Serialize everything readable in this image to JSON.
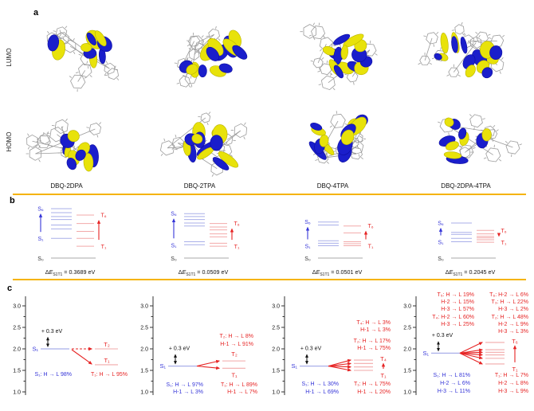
{
  "colors": {
    "separator": "#f5b301",
    "singlet": "#3535d8",
    "singlet_line": "#a9afe9",
    "triplet": "#e62424",
    "triplet_line": "#f2a9a9",
    "axis": "#333333",
    "ground_line": "#a8a8a8",
    "ground_text": "#333333",
    "text": "#111111",
    "orbital_positive": "#e8e20a",
    "orbital_negative": "#1a1ecb",
    "skeleton": "#9b9b9b"
  },
  "panel_a": {
    "label": "a",
    "row_labels": [
      "LUMO",
      "HOMO"
    ],
    "compounds": [
      "DBQ-2DPA",
      "DBQ-2TPA",
      "DBQ-4TPA",
      "DBQ-2DPA-4TPA"
    ]
  },
  "panel_b": {
    "label": "b",
    "columns": [
      {
        "compound": "DBQ-2DPA",
        "labels": {
          "s_top": "S₆",
          "s_bottom": "S₁",
          "t_top": "T₆",
          "t_bottom": "T₁",
          "ground": "S₀"
        },
        "s_levels": [
          0.4,
          0.59,
          0.67,
          0.78,
          0.84,
          0.92,
          1.0
        ],
        "t_levels": [
          0.24,
          0.4,
          0.54,
          0.7,
          0.87
        ],
        "delta_e": {
          "d": "Δ",
          "e": "E",
          "sub": "S1T1",
          "rest": " = 0.3689 eV"
        }
      },
      {
        "compound": "DBQ-2TPA",
        "labels": {
          "s_top": "S₆",
          "s_bottom": "S₁",
          "t_top": "T₆",
          "t_bottom": "T₁",
          "ground": "S₀"
        },
        "s_levels": [
          0.27,
          0.33,
          0.65,
          0.71,
          0.78,
          0.84,
          0.9
        ],
        "t_levels": [
          0.24,
          0.3,
          0.43,
          0.49,
          0.57,
          0.63,
          0.7
        ],
        "delta_e": {
          "d": "Δ",
          "e": "E",
          "sub": "S1T1",
          "rest": " = 0.0509 eV"
        }
      },
      {
        "compound": "DBQ-4TPA",
        "labels": {
          "s_top": "S₆",
          "s_bottom": "S₁",
          "t_top": "T₆",
          "t_bottom": "T₁",
          "ground": "S₀"
        },
        "s_levels": [
          0.25,
          0.3,
          0.35,
          0.67,
          0.73
        ],
        "t_levels": [
          0.25,
          0.29,
          0.33,
          0.51,
          0.65
        ],
        "delta_e": {
          "d": "Δ",
          "e": "E",
          "sub": "S1T1",
          "rest": " = 0.0501 eV"
        }
      },
      {
        "compound": "DBQ-2DPA-4TPA",
        "labels": {
          "s_top": "S₆",
          "s_bottom": "S₁",
          "t_top": "T₆",
          "t_bottom": "T₁",
          "ground": "S₀"
        },
        "s_levels": [
          0.33,
          0.4,
          0.48,
          0.52,
          0.71
        ],
        "t_levels": [
          0.32,
          0.37,
          0.41,
          0.44,
          0.49,
          0.56
        ],
        "delta_e": {
          "d": "Δ",
          "e": "E",
          "sub": "S1T1",
          "rest": " = 0.2045 eV"
        }
      }
    ]
  },
  "panel_c": {
    "label": "c"
  },
  "chart_data": [
    {
      "type": "line",
      "title": "DBQ-2DPA",
      "ylim": [
        1.0,
        3.0
      ],
      "yticks": [
        1.0,
        1.5,
        2.0,
        2.5,
        3.0
      ],
      "grid": false,
      "offset_label": "+ 0.3 eV",
      "offset_value": 0.3,
      "s1": {
        "label": "S₁",
        "energy": 2.0
      },
      "t_states": [
        {
          "label": "T₂",
          "energy": 2.0,
          "arrow": "dashed"
        },
        {
          "label": "T₁",
          "energy": 1.63,
          "arrow": "solid"
        }
      ],
      "s_annotation": [
        "S₁: H → L 98%"
      ],
      "t_annotation": [
        "T₁: H → L 95%"
      ]
    },
    {
      "type": "line",
      "title": "DBQ-2TPA",
      "ylim": [
        1.0,
        3.0
      ],
      "yticks": [
        1.0,
        1.5,
        2.0,
        2.5,
        3.0
      ],
      "grid": false,
      "offset_label": "+ 0.3 eV",
      "offset_value": 0.3,
      "s1": {
        "label": "S₁",
        "energy": 1.6
      },
      "t_states": [
        {
          "label": "T₂",
          "energy": 1.72,
          "arrow": "solid"
        },
        {
          "label": "T₁",
          "energy": 1.55,
          "arrow": "solid"
        }
      ],
      "top_right_annotation": [
        "T₂: H → L 8%",
        "H-1 → L 91%"
      ],
      "s_annotation": [
        "S₁: H → L 97%",
        "H-1 → L 3%"
      ],
      "t_annotation": [
        "T₁: H → L 89%",
        "H-1 → L 7%"
      ]
    },
    {
      "type": "line",
      "title": "DBQ-4TPA",
      "ylim": [
        1.0,
        3.0
      ],
      "yticks": [
        1.0,
        1.5,
        2.0,
        2.5,
        3.0
      ],
      "grid": false,
      "offset_label": "+ 0.3 eV",
      "offset_value": 0.3,
      "s1": {
        "label": "S₁",
        "energy": 1.6
      },
      "t_states": [
        {
          "label": "T₁",
          "energy": 1.5,
          "arrow": "solid"
        },
        {
          "label": "T₂",
          "energy": 1.58,
          "arrow": "solid"
        },
        {
          "label": "T₃",
          "energy": 1.66,
          "arrow": "solid"
        },
        {
          "label": "T₄",
          "energy": 1.74,
          "arrow": "solid"
        }
      ],
      "range_arrow": {
        "top_label": "T₄",
        "bottom_label": "T₁"
      },
      "top_right_annotation": [
        "T₄: H → L 3%",
        "H-1 → L 3%",
        "T₂: H → L 17%",
        "H-1 → L 75%"
      ],
      "s_annotation": [
        "S₁: H → L 30%",
        "H-1 → L 69%"
      ],
      "t_annotation": [
        "T₁: H → L 75%",
        "H-1 → L 20%"
      ]
    },
    {
      "type": "line",
      "title": "DBQ-2DPA-4TPA",
      "ylim": [
        1.0,
        3.0
      ],
      "yticks": [
        1.0,
        1.5,
        2.0,
        2.5,
        3.0
      ],
      "grid": false,
      "offset_label": "+ 0.3 eV",
      "offset_value": 0.3,
      "s1": {
        "label": "S₁",
        "energy": 1.9
      },
      "t_states": [
        {
          "label": "T₁",
          "energy": 1.65,
          "arrow": "solid"
        },
        {
          "label": "T₂",
          "energy": 1.78,
          "arrow": "solid"
        },
        {
          "label": "T₃",
          "energy": 1.86,
          "arrow": "solid"
        },
        {
          "label": "T₄",
          "energy": 1.92,
          "arrow": "solid"
        },
        {
          "label": "T₅",
          "energy": 1.98,
          "arrow": "solid"
        },
        {
          "label": "T₆",
          "energy": 2.15,
          "arrow": "solid"
        }
      ],
      "range_arrow": {
        "top_label": "T₆",
        "bottom_label": "T₁"
      },
      "top_left_annotation": [
        "T₅: H → L 19%",
        "H-2 → L 15%",
        "H-3 → L 57%",
        "T₄: H-2 → L 60%",
        "H-3 → L 25%"
      ],
      "top_right_annotation": [
        "T₆: H-2 → L 6%",
        "T₃: H → L 22%",
        "H-3 → L 2%",
        "T₂: H → L 48%",
        "H-2 → L 9%",
        "H-3 → L 3%"
      ],
      "s_annotation": [
        "S₁: H → L 81%",
        "H-2 → L 6%",
        "H-3 → L 11%"
      ],
      "t_annotation": [
        "T₁: H → L 7%",
        "H-2 → L 8%",
        "H-3 → L 9%"
      ]
    }
  ]
}
